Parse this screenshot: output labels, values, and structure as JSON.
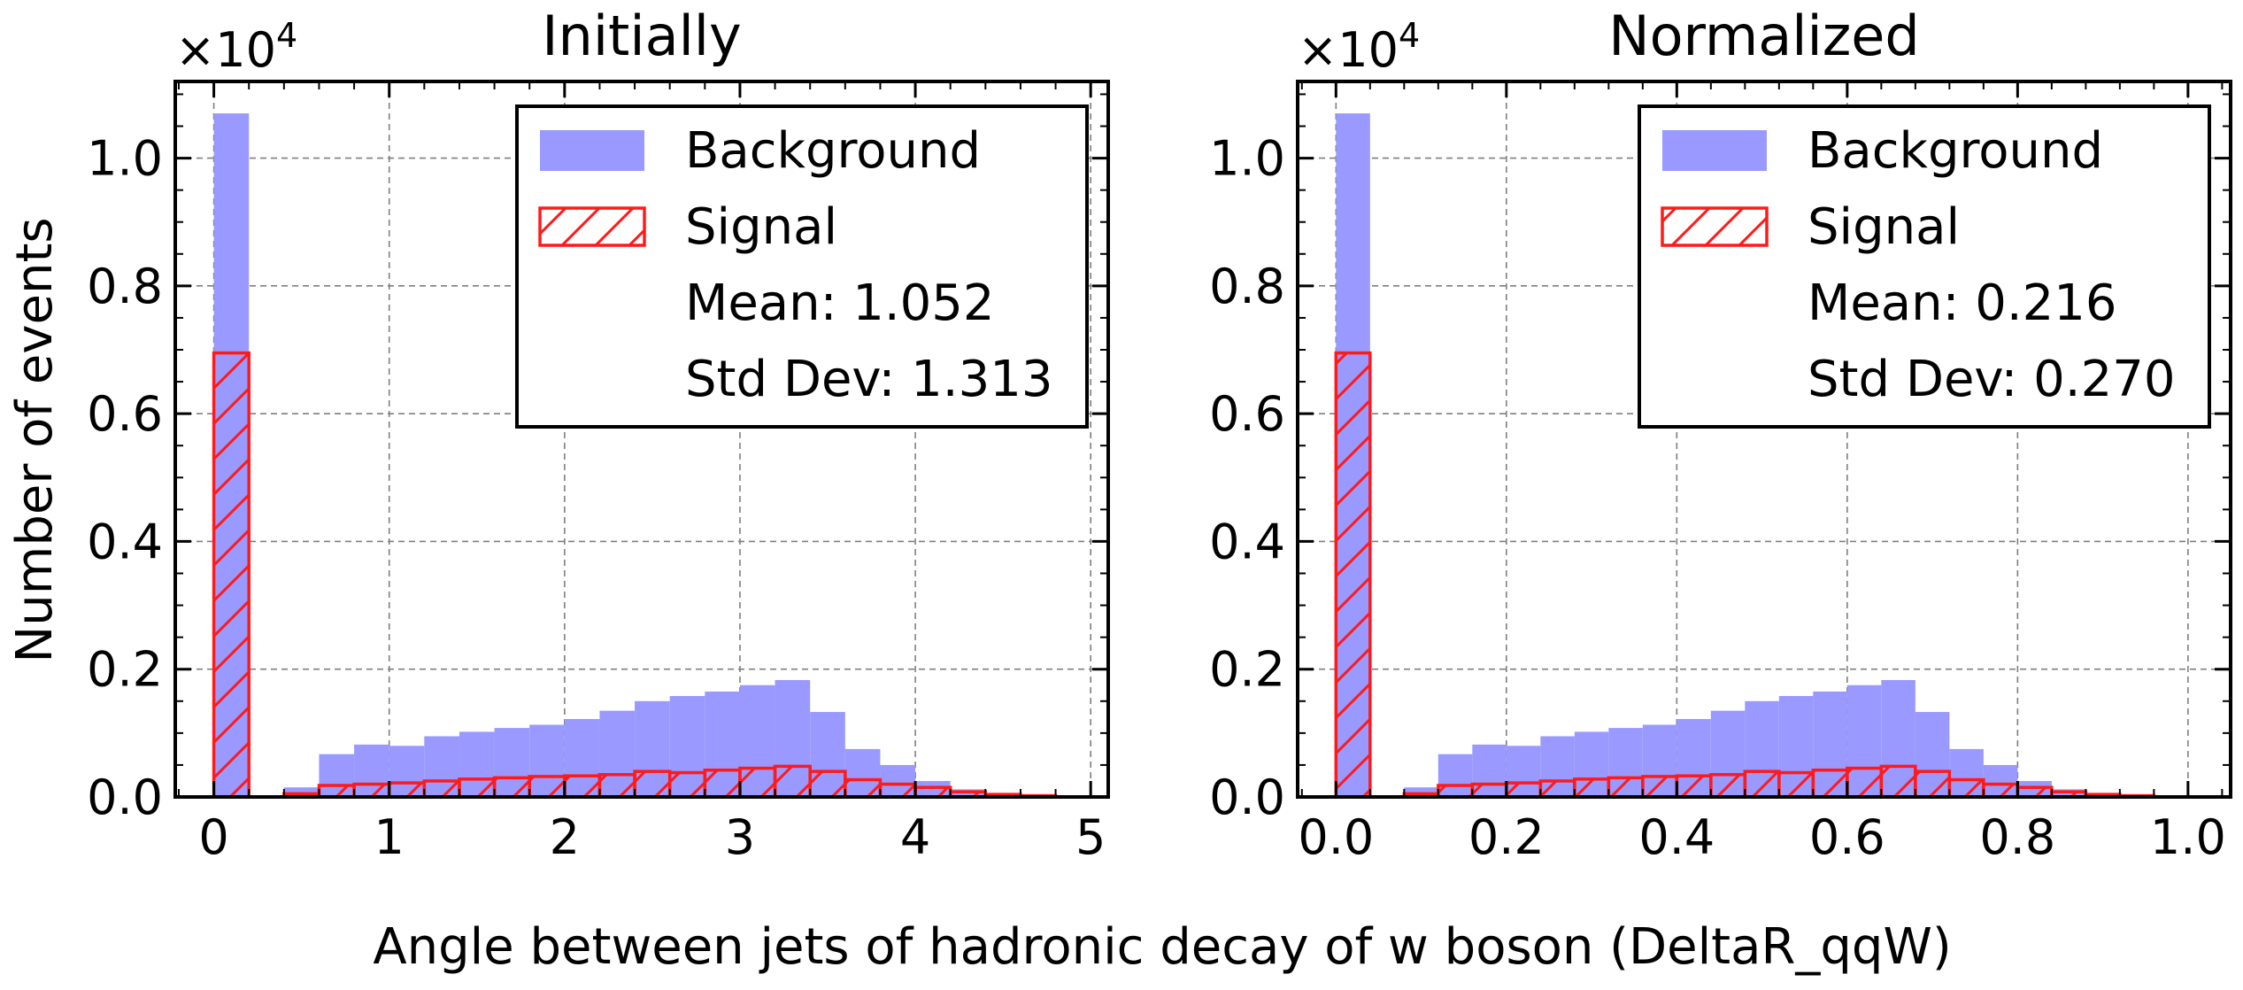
{
  "figure": {
    "ylabel": "Number of events",
    "xlabel": "Angle between jets of hadronic decay of w boson (DeltaR_qqW)"
  },
  "colors": {
    "background_fill": "#9999ff",
    "signal_edge": "#ff1a1a",
    "grid": "#7f7f7f"
  },
  "chart_data": [
    {
      "type": "bar",
      "title": "Initially",
      "multiplier": "×10",
      "multiplier_exp": "4",
      "xlim": [
        -0.22,
        5.1
      ],
      "ylim": [
        0,
        1.12
      ],
      "xticks": [
        0,
        1,
        2,
        3,
        4,
        5
      ],
      "xtick_labels": [
        "0",
        "1",
        "2",
        "3",
        "4",
        "5"
      ],
      "yticks": [
        0.0,
        0.2,
        0.4,
        0.6,
        0.8,
        1.0
      ],
      "ytick_labels": [
        "0.0",
        "0.2",
        "0.4",
        "0.6",
        "0.8",
        "1.0"
      ],
      "grid": true,
      "legend_position": "top-right",
      "legend": {
        "entries": [
          "Background",
          "Signal"
        ],
        "mean": "Mean: 1.052",
        "std": "Std Dev: 1.313"
      },
      "series": [
        {
          "name": "Background",
          "style": "filled",
          "bin_edges": [
            0,
            0.2,
            0.4,
            0.6,
            0.8,
            1.0,
            1.2,
            1.4,
            1.6,
            1.8,
            2.0,
            2.2,
            2.4,
            2.6,
            2.8,
            3.0,
            3.2,
            3.4,
            3.6,
            3.8,
            4.0,
            4.2,
            4.4,
            4.6,
            4.8
          ],
          "values": [
            1.07,
            0,
            0.015,
            0.067,
            0.082,
            0.08,
            0.095,
            0.102,
            0.108,
            0.113,
            0.122,
            0.135,
            0.15,
            0.158,
            0.165,
            0.175,
            0.183,
            0.133,
            0.075,
            0.05,
            0.025,
            0.012,
            0.005,
            0.002
          ]
        },
        {
          "name": "Signal",
          "style": "hatched",
          "bin_edges": [
            0,
            0.2,
            0.4,
            0.6,
            0.8,
            1.0,
            1.2,
            1.4,
            1.6,
            1.8,
            2.0,
            2.2,
            2.4,
            2.6,
            2.8,
            3.0,
            3.2,
            3.4,
            3.6,
            3.8,
            4.0,
            4.2,
            4.4,
            4.6,
            4.8
          ],
          "values": [
            0.695,
            0,
            0.005,
            0.018,
            0.02,
            0.022,
            0.025,
            0.028,
            0.03,
            0.032,
            0.033,
            0.035,
            0.04,
            0.038,
            0.042,
            0.045,
            0.048,
            0.04,
            0.027,
            0.02,
            0.015,
            0.008,
            0.004,
            0.002
          ]
        }
      ]
    },
    {
      "type": "bar",
      "title": "Normalized",
      "multiplier": "×10",
      "multiplier_exp": "4",
      "xlim": [
        -0.045,
        1.05
      ],
      "ylim": [
        0,
        1.12
      ],
      "xticks": [
        0.0,
        0.2,
        0.4,
        0.6,
        0.8,
        1.0
      ],
      "xtick_labels": [
        "0.0",
        "0.2",
        "0.4",
        "0.6",
        "0.8",
        "1.0"
      ],
      "yticks": [
        0.0,
        0.2,
        0.4,
        0.6,
        0.8,
        1.0
      ],
      "ytick_labels": [
        "0.0",
        "0.2",
        "0.4",
        "0.6",
        "0.8",
        "1.0"
      ],
      "grid": true,
      "legend_position": "top-right",
      "legend": {
        "entries": [
          "Background",
          "Signal"
        ],
        "mean": "Mean: 0.216",
        "std": "Std Dev: 0.270"
      },
      "series": [
        {
          "name": "Background",
          "style": "filled",
          "bin_edges": [
            0,
            0.04,
            0.08,
            0.12,
            0.16,
            0.2,
            0.24,
            0.28,
            0.32,
            0.36,
            0.4,
            0.44,
            0.48,
            0.52,
            0.56,
            0.6,
            0.64,
            0.68,
            0.72,
            0.76,
            0.8,
            0.84,
            0.88,
            0.92,
            0.96
          ],
          "values": [
            1.07,
            0,
            0.015,
            0.067,
            0.082,
            0.08,
            0.095,
            0.102,
            0.108,
            0.113,
            0.122,
            0.135,
            0.15,
            0.158,
            0.165,
            0.175,
            0.183,
            0.133,
            0.075,
            0.05,
            0.025,
            0.012,
            0.005,
            0.002
          ]
        },
        {
          "name": "Signal",
          "style": "hatched",
          "bin_edges": [
            0,
            0.04,
            0.08,
            0.12,
            0.16,
            0.2,
            0.24,
            0.28,
            0.32,
            0.36,
            0.4,
            0.44,
            0.48,
            0.52,
            0.56,
            0.6,
            0.64,
            0.68,
            0.72,
            0.76,
            0.8,
            0.84,
            0.88,
            0.92,
            0.96
          ],
          "values": [
            0.695,
            0,
            0.005,
            0.018,
            0.02,
            0.022,
            0.025,
            0.028,
            0.03,
            0.032,
            0.033,
            0.035,
            0.04,
            0.038,
            0.042,
            0.045,
            0.048,
            0.04,
            0.027,
            0.02,
            0.015,
            0.008,
            0.004,
            0.002
          ]
        }
      ]
    }
  ]
}
